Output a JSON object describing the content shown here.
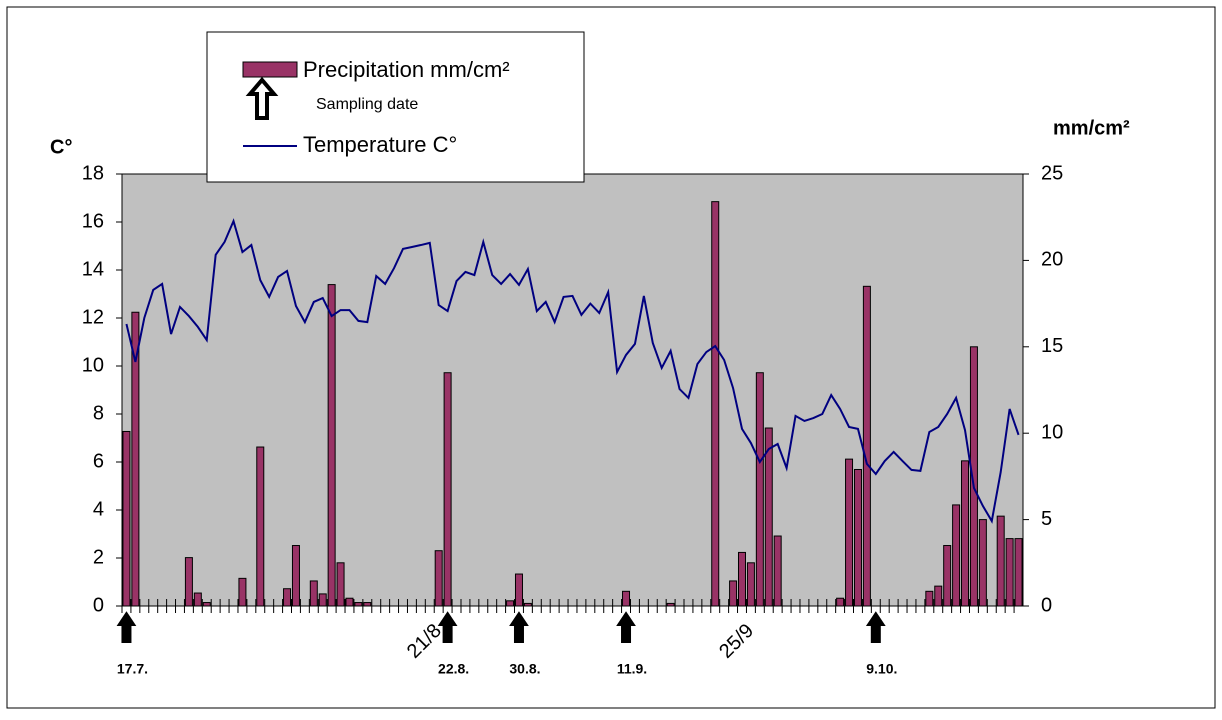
{
  "chart_data": {
    "type": "bar",
    "ylabel": "C°",
    "y2label": "mm/cm²",
    "ylim": [
      0,
      18
    ],
    "yticks": [
      0,
      2,
      4,
      6,
      8,
      10,
      12,
      14,
      16,
      18
    ],
    "y2lim": [
      0,
      25
    ],
    "y2ticks": [
      0,
      5,
      10,
      15,
      20,
      25
    ],
    "plot_background": "#c0c0c0",
    "categories": [
      null,
      null,
      null,
      null,
      null,
      null,
      null,
      null,
      null,
      null,
      null,
      null,
      null,
      null,
      null,
      null,
      null,
      null,
      null,
      null,
      null,
      null,
      null,
      null,
      null,
      null,
      null,
      null,
      null,
      null,
      null,
      null,
      null,
      null,
      null,
      "21/8",
      null,
      null,
      null,
      null,
      null,
      null,
      null,
      null,
      null,
      null,
      null,
      null,
      null,
      null,
      null,
      null,
      null,
      null,
      null,
      null,
      null,
      null,
      null,
      null,
      null,
      null,
      null,
      null,
      null,
      null,
      null,
      null,
      null,
      null,
      "25/9",
      null,
      null,
      null,
      null,
      null,
      null,
      null,
      null,
      null,
      null,
      null,
      null,
      null,
      null,
      null,
      null,
      null,
      null,
      null,
      null,
      null,
      null,
      null,
      null,
      null,
      null,
      null,
      null,
      null,
      null
    ],
    "series": [
      {
        "name": "Precipitation mm/cm²",
        "type": "bar",
        "axis": "y2",
        "color": "#993366",
        "values": [
          10.1,
          17,
          0,
          0,
          0,
          0,
          0,
          2.8,
          0.75,
          0.2,
          0,
          0,
          0,
          1.6,
          0,
          9.2,
          0,
          0,
          1,
          3.5,
          0,
          1.45,
          0.7,
          18.6,
          2.5,
          0.45,
          0.2,
          0.2,
          0,
          0,
          0,
          0,
          0,
          0,
          0,
          3.2,
          13.5,
          0,
          0,
          0,
          0,
          0,
          0,
          0.3,
          1.85,
          0.15,
          0,
          0,
          0,
          0,
          0,
          0,
          0,
          0,
          0,
          0,
          0.85,
          0,
          0,
          0,
          0,
          0.15,
          0,
          0,
          0,
          0,
          23.4,
          0,
          1.45,
          3.1,
          2.5,
          13.5,
          10.3,
          4.05,
          0,
          0,
          0,
          0,
          0,
          0,
          0.45,
          8.5,
          7.9,
          18.5,
          0,
          0,
          0,
          0,
          0,
          0,
          0.85,
          1.15,
          3.5,
          5.85,
          8.4,
          15,
          5,
          0,
          5.2,
          3.9,
          3.9
        ]
      },
      {
        "name": "Temperature C°",
        "type": "line",
        "color": "#000080",
        "values": [
          11.75,
          10.17,
          12.0,
          13.17,
          13.42,
          11.33,
          12.46,
          12.08,
          11.63,
          11.08,
          14.63,
          15.17,
          16.04,
          14.75,
          15.04,
          13.58,
          12.88,
          13.71,
          13.96,
          12.5,
          11.83,
          12.67,
          12.83,
          12.08,
          12.33,
          12.33,
          11.88,
          11.83,
          13.75,
          13.42,
          14.08,
          14.88,
          14.96,
          15.04,
          15.13,
          12.54,
          12.29,
          13.54,
          13.92,
          13.79,
          15.17,
          13.79,
          13.42,
          13.83,
          13.38,
          14.04,
          12.29,
          12.67,
          11.83,
          12.88,
          12.92,
          12.13,
          12.6,
          12.21,
          13.08,
          9.75,
          10.46,
          10.92,
          12.92,
          10.96,
          9.92,
          10.63,
          9.04,
          8.67,
          10.08,
          10.58,
          10.83,
          10.25,
          9.08,
          7.38,
          6.79,
          6.0,
          6.54,
          6.75,
          5.75,
          7.92,
          7.71,
          7.83,
          8.0,
          8.79,
          8.21,
          7.46,
          7.38,
          5.92,
          5.5,
          6.04,
          6.42,
          6.04,
          5.67,
          5.63,
          7.25,
          7.46,
          8.0,
          8.67,
          7.33,
          4.92,
          4.17,
          3.54,
          5.58,
          8.21,
          7.13
        ]
      }
    ],
    "sampling_dates": {
      "name": "Sampling date",
      "labels": [
        "17.7.",
        null,
        null,
        null,
        null,
        null,
        null,
        null,
        null,
        null,
        null,
        null,
        null,
        null,
        null,
        null,
        null,
        null,
        null,
        null,
        null,
        null,
        null,
        null,
        null,
        null,
        null,
        null,
        null,
        null,
        null,
        null,
        null,
        null,
        null,
        null,
        "22.8.",
        null,
        null,
        null,
        null,
        null,
        null,
        null,
        "30.8.",
        null,
        null,
        null,
        null,
        null,
        null,
        null,
        null,
        null,
        null,
        null,
        "11.9.",
        null,
        null,
        null,
        null,
        null,
        null,
        null,
        null,
        null,
        null,
        null,
        null,
        null,
        null,
        null,
        null,
        null,
        null,
        null,
        null,
        null,
        null,
        null,
        null,
        null,
        null,
        null,
        "9.10.",
        null,
        null,
        null,
        null,
        null,
        null,
        null,
        null,
        null,
        null,
        null,
        null,
        null,
        null,
        null,
        null
      ]
    }
  }
}
